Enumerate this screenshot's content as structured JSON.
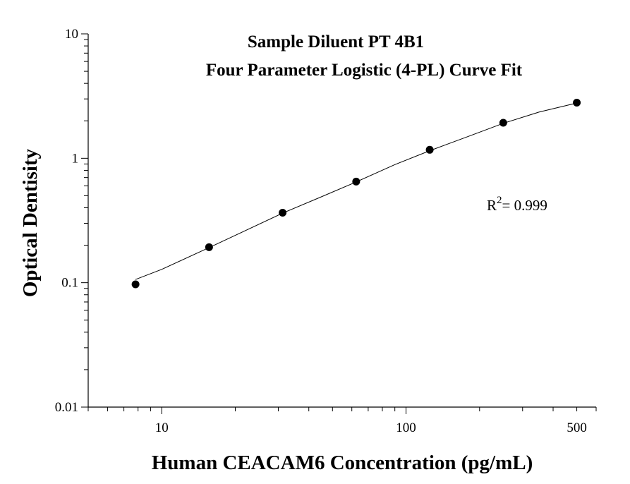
{
  "chart_data": {
    "type": "scatter",
    "title_line1": "Sample Diluent PT 4B1",
    "title_line2": "Four Parameter Logistic (4-PL) Curve Fit",
    "xlabel": "Human CEACAM6 Concentration (pg/mL)",
    "ylabel": "Optical Dentisity",
    "xscale": "log",
    "yscale": "log",
    "xlim": [
      5,
      600
    ],
    "ylim": [
      0.01,
      10
    ],
    "x_ticks": [
      {
        "value": 10,
        "label": "10"
      },
      {
        "value": 100,
        "label": "100"
      },
      {
        "value": 500,
        "label": "500"
      }
    ],
    "y_ticks": [
      {
        "value": 10,
        "label": "10"
      },
      {
        "value": 1,
        "label": "1"
      },
      {
        "value": 0.1,
        "label": "0.1"
      },
      {
        "value": 0.01,
        "label": "0.01"
      }
    ],
    "grid": false,
    "points": {
      "x": [
        7.8125,
        15.625,
        31.25,
        62.5,
        125,
        250,
        500
      ],
      "y": [
        0.097,
        0.193,
        0.365,
        0.65,
        1.17,
        1.93,
        2.8
      ]
    },
    "fit": {
      "model": "4-PL",
      "x": [
        7.8,
        10,
        15.6,
        20,
        31.25,
        45,
        62.5,
        90,
        125,
        180,
        250,
        350,
        500
      ],
      "y": [
        0.106,
        0.128,
        0.191,
        0.24,
        0.362,
        0.49,
        0.645,
        0.89,
        1.15,
        1.5,
        1.91,
        2.35,
        2.78
      ]
    },
    "annotation": {
      "r_label": "R",
      "r_exp": "2",
      "r_value": "= 0.999"
    }
  }
}
